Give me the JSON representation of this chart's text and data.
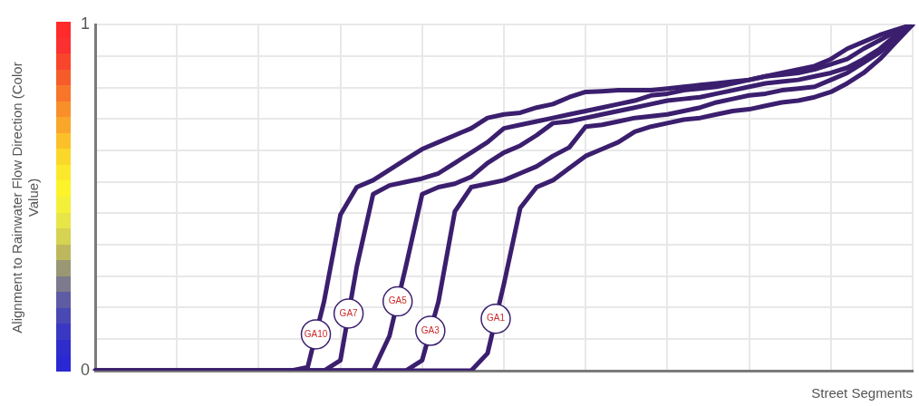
{
  "chart_data": {
    "type": "line",
    "ylabel": "Alignment to Rainwater Flow Direction (Color Value)",
    "xlabel": "Street Segments",
    "categories": [
      null,
      null,
      null,
      null,
      null,
      null,
      null,
      null,
      null,
      null,
      null,
      null,
      null,
      null,
      null,
      null,
      null,
      null,
      null,
      null,
      null,
      null,
      null,
      null,
      null,
      null,
      null,
      null,
      null,
      null,
      null,
      null,
      null,
      null,
      null,
      null,
      null,
      null,
      null,
      null,
      null,
      null,
      null,
      null,
      null,
      null,
      null,
      null,
      null,
      null,
      null
    ],
    "series": [
      {
        "name": "GA10",
        "color": "#3b1f6e",
        "values": [
          0,
          0,
          0,
          0,
          0,
          0,
          0,
          0,
          0,
          0,
          0,
          0,
          0,
          0.01,
          0.2,
          0.45,
          0.53,
          0.55,
          0.58,
          0.61,
          0.64,
          0.66,
          0.68,
          0.7,
          0.73,
          0.74,
          0.745,
          0.76,
          0.77,
          0.79,
          0.805,
          0.807,
          0.81,
          0.81,
          0.81,
          0.815,
          0.82,
          0.825,
          0.83,
          0.835,
          0.84,
          0.85,
          0.86,
          0.87,
          0.88,
          0.9,
          0.93,
          0.95,
          0.97,
          0.985,
          1
        ]
      },
      {
        "name": "GA7",
        "color": "#3b1f6e",
        "values": [
          0,
          0,
          0,
          0,
          0,
          0,
          0,
          0,
          0,
          0,
          0,
          0,
          0,
          0,
          0,
          0.03,
          0.3,
          0.51,
          0.535,
          0.545,
          0.555,
          0.57,
          0.6,
          0.63,
          0.66,
          0.7,
          0.71,
          0.72,
          0.73,
          0.74,
          0.75,
          0.76,
          0.77,
          0.78,
          0.795,
          0.8,
          0.81,
          0.815,
          0.82,
          0.83,
          0.84,
          0.85,
          0.855,
          0.86,
          0.87,
          0.885,
          0.9,
          0.93,
          0.955,
          0.98,
          1
        ]
      },
      {
        "name": "GA5",
        "color": "#3b1f6e",
        "values": [
          0,
          0,
          0,
          0,
          0,
          0,
          0,
          0,
          0,
          0,
          0,
          0,
          0,
          0,
          0,
          0,
          0,
          0,
          0.1,
          0.3,
          0.51,
          0.53,
          0.54,
          0.56,
          0.6,
          0.63,
          0.65,
          0.68,
          0.715,
          0.72,
          0.73,
          0.74,
          0.75,
          0.76,
          0.77,
          0.78,
          0.785,
          0.79,
          0.8,
          0.81,
          0.82,
          0.83,
          0.835,
          0.84,
          0.85,
          0.86,
          0.875,
          0.9,
          0.93,
          0.97,
          1
        ]
      },
      {
        "name": "GA3",
        "color": "#3b1f6e",
        "values": [
          0,
          0,
          0,
          0,
          0,
          0,
          0,
          0,
          0,
          0,
          0,
          0,
          0,
          0,
          0,
          0,
          0,
          0,
          0,
          0,
          0.03,
          0.2,
          0.46,
          0.53,
          0.54,
          0.55,
          0.57,
          0.59,
          0.62,
          0.645,
          0.705,
          0.71,
          0.72,
          0.73,
          0.735,
          0.74,
          0.75,
          0.76,
          0.775,
          0.785,
          0.795,
          0.8,
          0.81,
          0.815,
          0.82,
          0.84,
          0.86,
          0.89,
          0.92,
          0.96,
          1
        ]
      },
      {
        "name": "GA1",
        "color": "#3b1f6e",
        "values": [
          0,
          0,
          0,
          0,
          0,
          0,
          0,
          0,
          0,
          0,
          0,
          0,
          0,
          0,
          0,
          0,
          0,
          0,
          0,
          0,
          0,
          0,
          0,
          0,
          0.05,
          0.25,
          0.47,
          0.53,
          0.55,
          0.585,
          0.62,
          0.64,
          0.66,
          0.69,
          0.705,
          0.715,
          0.725,
          0.73,
          0.74,
          0.75,
          0.755,
          0.765,
          0.775,
          0.78,
          0.79,
          0.805,
          0.83,
          0.86,
          0.9,
          0.95,
          1
        ]
      }
    ],
    "ylim": [
      0,
      1
    ],
    "yticks": [
      0,
      {
        "value": 0.091,
        "label": null
      },
      {
        "value": 0.182,
        "label": null
      },
      {
        "value": 0.273,
        "label": null
      },
      {
        "value": 0.364,
        "label": null
      },
      {
        "value": 0.455,
        "label": null
      },
      {
        "value": 0.545,
        "label": null
      },
      {
        "value": 0.636,
        "label": null
      },
      {
        "value": 0.727,
        "label": null
      },
      {
        "value": 0.818,
        "label": null
      },
      {
        "value": 0.909,
        "label": null
      },
      1
    ],
    "grid": true,
    "legend": false,
    "marker": "none",
    "line_style": "solid",
    "tick_labels": "y"
  }
}
